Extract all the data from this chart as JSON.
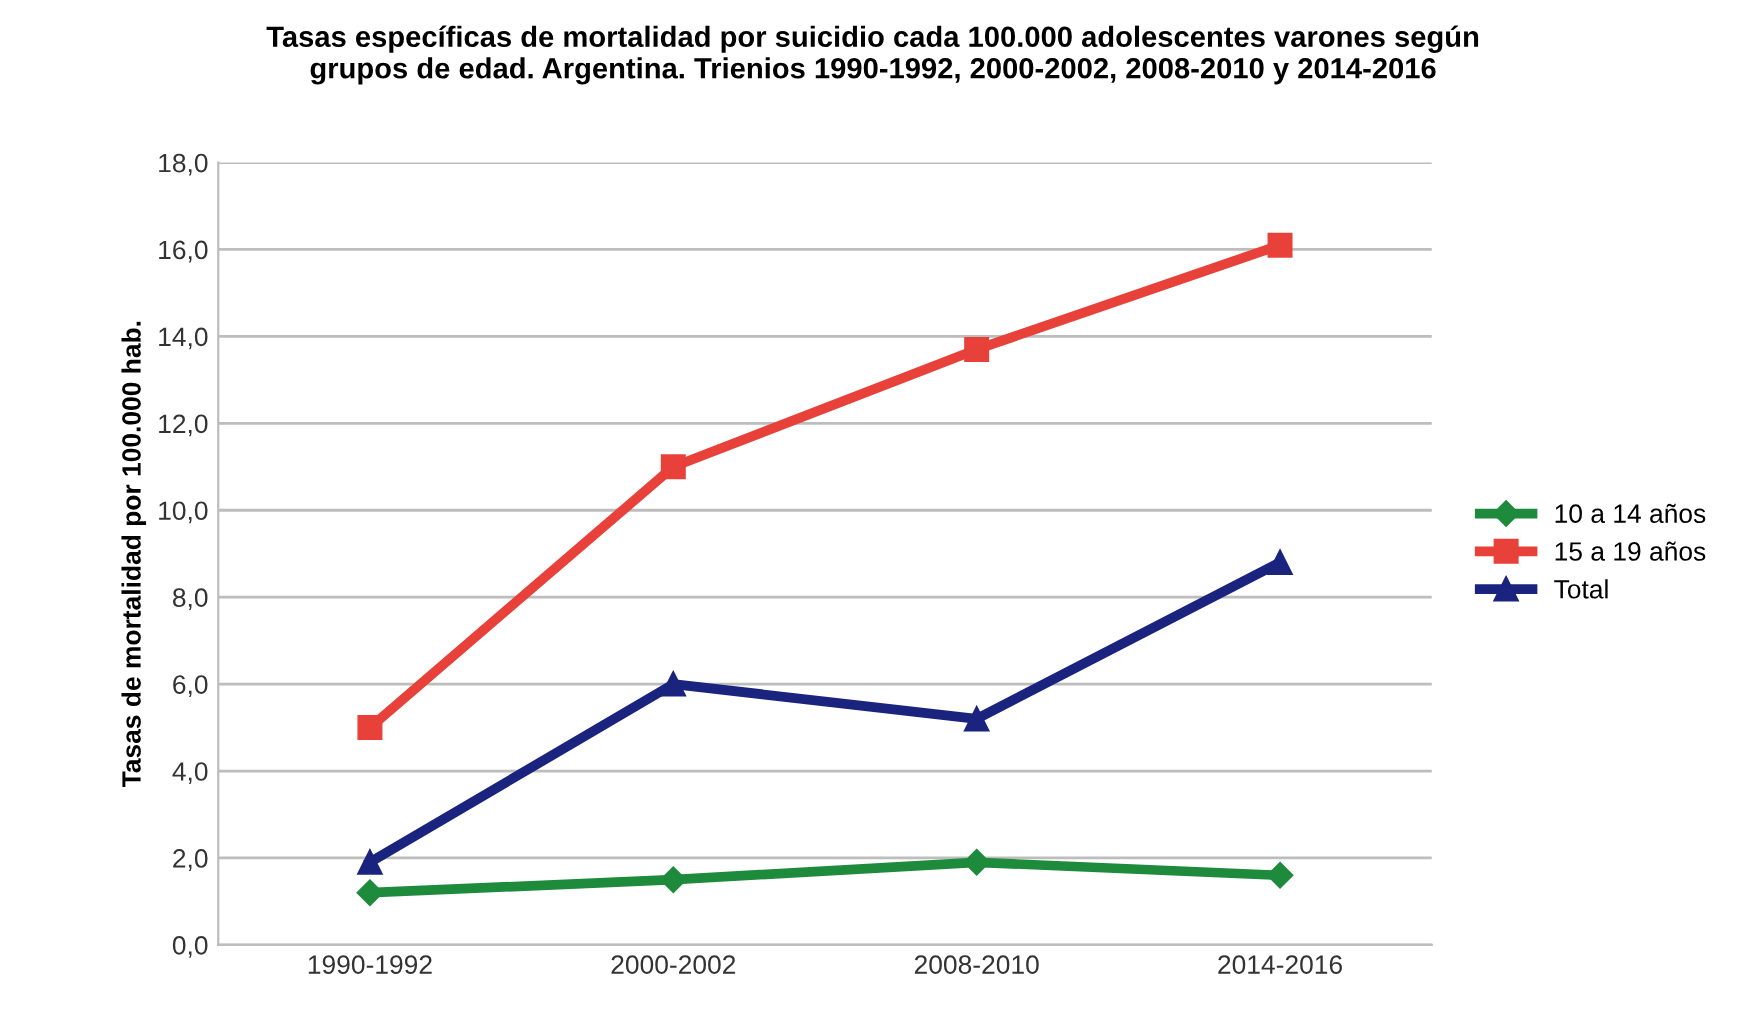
{
  "chart_data": {
    "type": "line",
    "title": "Tasas específicas de mortalidad por suicidio cada 100.000 adolescentes varones según\ngrupos de edad. Argentina. Trienios 1990-1992, 2000-2002, 2008-2010 y 2014-2016",
    "ylabel": "Tasas de mortalidad por 100.000 hab.",
    "categories": [
      "1990-1992",
      "2000-2002",
      "2008-2010",
      "2014-2016"
    ],
    "series": [
      {
        "name": "10 a 14 años",
        "color": "#1e8a3c",
        "marker": "diamond",
        "values": [
          1.2,
          1.5,
          1.9,
          1.6
        ]
      },
      {
        "name": "15 a 19 años",
        "color": "#e8413a",
        "marker": "square",
        "values": [
          5.0,
          11.0,
          13.7,
          16.1
        ]
      },
      {
        "name": "Total",
        "color": "#1a237e",
        "marker": "triangle",
        "values": [
          1.9,
          6.0,
          5.2,
          8.8
        ]
      }
    ],
    "ylim": [
      0,
      18
    ],
    "yticks": [
      {
        "value": 0,
        "label": "0,0"
      },
      {
        "value": 2,
        "label": "2,0"
      },
      {
        "value": 4,
        "label": "4,0"
      },
      {
        "value": 6,
        "label": "6,0"
      },
      {
        "value": 8,
        "label": "8,0"
      },
      {
        "value": 10,
        "label": "10,0"
      },
      {
        "value": 12,
        "label": "12,0"
      },
      {
        "value": 14,
        "label": "14,0"
      },
      {
        "value": 16,
        "label": "16,0"
      },
      {
        "value": 18,
        "label": "18,0"
      }
    ],
    "grid": "y",
    "legend": "right",
    "line_style": "solid"
  }
}
